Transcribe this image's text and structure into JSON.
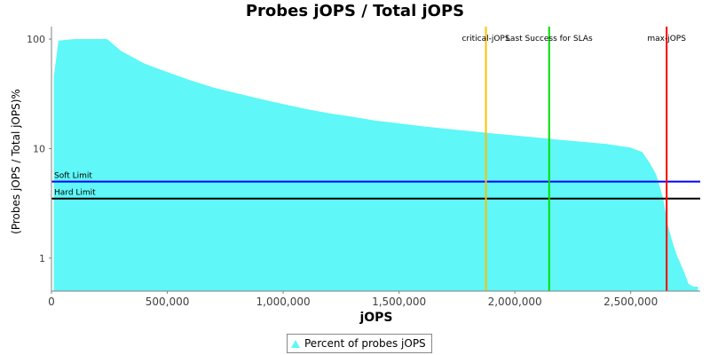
{
  "chart_data": {
    "type": "area",
    "title": "Probes jOPS / Total jOPS",
    "xlabel": "jOPS",
    "ylabel": "(Probes jOPS / Total jOPS)%",
    "xlim": [
      0,
      2800000
    ],
    "ylim": [
      0.5,
      130
    ],
    "yscale": "log",
    "x_ticks": [
      0,
      500000,
      1000000,
      1500000,
      2000000,
      2500000
    ],
    "x_tick_labels": [
      "0",
      "500,000",
      "1,000,000",
      "1,500,000",
      "2,000,000",
      "2,500,000"
    ],
    "y_ticks": [
      1,
      10,
      100
    ],
    "y_tick_labels": [
      "1",
      "10",
      "100"
    ],
    "grid": false,
    "legend_position": "bottom-center",
    "series": [
      {
        "name": "Percent of probes jOPS",
        "color": "#5ff7f7",
        "x": [
          10000,
          30000,
          100000,
          200000,
          240000,
          300000,
          400000,
          500000,
          600000,
          700000,
          800000,
          900000,
          1000000,
          1100000,
          1200000,
          1300000,
          1400000,
          1500000,
          1600000,
          1700000,
          1800000,
          1900000,
          2000000,
          2100000,
          2200000,
          2300000,
          2400000,
          2500000,
          2550000,
          2580000,
          2610000,
          2640000,
          2660000,
          2680000,
          2700000,
          2730000,
          2750000,
          2770000,
          2790000
        ],
        "y": [
          45,
          97,
          100,
          100,
          100,
          78,
          60,
          50,
          42,
          36,
          32,
          28.5,
          25.5,
          23,
          21,
          19.5,
          18,
          17,
          16,
          15.2,
          14.5,
          13.8,
          13.2,
          12.6,
          12,
          11.5,
          11,
          10.2,
          9.3,
          7.5,
          5.8,
          3.5,
          2,
          1.4,
          1.05,
          0.75,
          0.58,
          0.55,
          0.55
        ]
      }
    ],
    "horizontal_markers": [
      {
        "label": "Soft Limit",
        "y": 5,
        "color": "#0000ff"
      },
      {
        "label": "Hard Limit",
        "y": 3.5,
        "color": "#000000"
      }
    ],
    "vertical_markers": [
      {
        "label": "critical-jOPS",
        "x": 1875000,
        "color": "#ffc000"
      },
      {
        "label": "Last Success for SLAs",
        "x": 2148000,
        "color": "#00e000"
      },
      {
        "label": "max-jOPS",
        "x": 2655000,
        "color": "#ff0000"
      }
    ]
  }
}
